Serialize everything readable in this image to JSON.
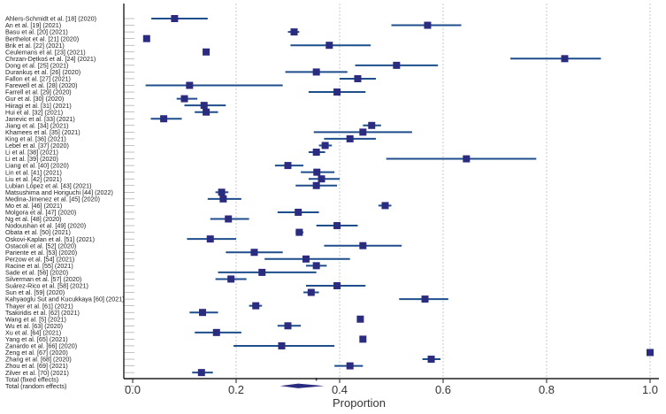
{
  "chart_data": {
    "type": "forest",
    "xlabel": "Proportion",
    "xlim": [
      -0.02,
      1.02
    ],
    "xticks": [
      0.0,
      0.2,
      0.4,
      0.6,
      0.8,
      1.0
    ],
    "xtick_labels": [
      "0.0",
      "0.2",
      "0.4",
      "0.6",
      "0.8",
      "1.0"
    ],
    "grid_x": true,
    "colors": {
      "marker": "#2b2b7f",
      "ci_line": "#1f4e8c",
      "grid": "#bbbbbb",
      "axis": "#222222",
      "summary": "#2b2b7f"
    },
    "studies": [
      {
        "label": "Ahlers-Schmidt et al. [18] (2020)",
        "estimate": 0.081,
        "lower": 0.036,
        "upper": 0.145
      },
      {
        "label": "An et al. [19] (2021)",
        "estimate": 0.57,
        "lower": 0.5,
        "upper": 0.635
      },
      {
        "label": "Basu et al. [20] (2021)",
        "estimate": 0.312,
        "lower": 0.3,
        "upper": 0.322
      },
      {
        "label": "Berthelot et al. [21] (2020)",
        "estimate": 0.027,
        "lower": 0.022,
        "upper": 0.033
      },
      {
        "label": "Brik et al. [22] (2021)",
        "estimate": 0.38,
        "lower": 0.305,
        "upper": 0.46
      },
      {
        "label": "Ceulemans et al. [23] (2021)",
        "estimate": 0.142,
        "lower": 0.136,
        "upper": 0.148
      },
      {
        "label": "Chrzan-Dętkoś et al. [24] (2021)",
        "estimate": 0.835,
        "lower": 0.73,
        "upper": 0.905
      },
      {
        "label": "Dong et al. [25] (2021)",
        "estimate": 0.51,
        "lower": 0.43,
        "upper": 0.59
      },
      {
        "label": "Durankuş et al. [26] (2020)",
        "estimate": 0.355,
        "lower": 0.295,
        "upper": 0.415
      },
      {
        "label": "Fallon et al. [27] (2021)",
        "estimate": 0.435,
        "lower": 0.4,
        "upper": 0.47
      },
      {
        "label": "Farewell et al. [28] (2020)",
        "estimate": 0.11,
        "lower": 0.025,
        "upper": 0.29
      },
      {
        "label": "Farrell et al. [29] (2020)",
        "estimate": 0.395,
        "lower": 0.34,
        "upper": 0.45
      },
      {
        "label": "Gur et al. [30] (2020)",
        "estimate": 0.1,
        "lower": 0.085,
        "upper": 0.125
      },
      {
        "label": "Hiiragi et al. [31] (2021)",
        "estimate": 0.138,
        "lower": 0.1,
        "upper": 0.18
      },
      {
        "label": "Hui et al. [32] (2021)",
        "estimate": 0.142,
        "lower": 0.12,
        "upper": 0.165
      },
      {
        "label": "Janevic et al. [33] (2021)",
        "estimate": 0.06,
        "lower": 0.035,
        "upper": 0.095
      },
      {
        "label": "Jiang et al. [34] (2021)",
        "estimate": 0.462,
        "lower": 0.445,
        "upper": 0.48
      },
      {
        "label": "Khamees et al. [35] (2021)",
        "estimate": 0.445,
        "lower": 0.35,
        "upper": 0.54
      },
      {
        "label": "King et al. [36] (2021)",
        "estimate": 0.42,
        "lower": 0.37,
        "upper": 0.47
      },
      {
        "label": "Lebel et al. [37] (2020)",
        "estimate": 0.372,
        "lower": 0.36,
        "upper": 0.385
      },
      {
        "label": "Li et al. [38] (2021)",
        "estimate": 0.355,
        "lower": 0.34,
        "upper": 0.372
      },
      {
        "label": "Li et al. [39] (2020)",
        "estimate": 0.645,
        "lower": 0.49,
        "upper": 0.78
      },
      {
        "label": "Liang et al. [40] (2020)",
        "estimate": 0.3,
        "lower": 0.275,
        "upper": 0.33
      },
      {
        "label": "Lin et al. [41] (2021)",
        "estimate": 0.356,
        "lower": 0.325,
        "upper": 0.39
      },
      {
        "label": "Liu et al. [42] (2021)",
        "estimate": 0.365,
        "lower": 0.34,
        "upper": 0.4
      },
      {
        "label": "Lubian López et al. [43] (2021)",
        "estimate": 0.355,
        "lower": 0.315,
        "upper": 0.395
      },
      {
        "label": "Matsushima and Horiguchi [44] (2022)",
        "estimate": 0.172,
        "lower": 0.16,
        "upper": 0.185
      },
      {
        "label": "Medina-Jimenez et al. [45] (2020)",
        "estimate": 0.175,
        "lower": 0.145,
        "upper": 0.21
      },
      {
        "label": "Mo et al. [46] (2021)",
        "estimate": 0.488,
        "lower": 0.475,
        "upper": 0.5
      },
      {
        "label": "Molgora et al. [47] (2020)",
        "estimate": 0.32,
        "lower": 0.28,
        "upper": 0.36
      },
      {
        "label": "Ng et al. [48] (2020)",
        "estimate": 0.185,
        "lower": 0.15,
        "upper": 0.225
      },
      {
        "label": "Nodoushan et al. [49] (2020)",
        "estimate": 0.395,
        "lower": 0.355,
        "upper": 0.435
      },
      {
        "label": "Obata et al. [50] (2021)",
        "estimate": 0.322,
        "lower": 0.315,
        "upper": 0.33
      },
      {
        "label": "Oskovi-Kaplan et al. [51] (2021)",
        "estimate": 0.15,
        "lower": 0.105,
        "upper": 0.2
      },
      {
        "label": "Ostacoli et al. [52] (2020)",
        "estimate": 0.445,
        "lower": 0.37,
        "upper": 0.52
      },
      {
        "label": "Pariente et al. [53] (2020)",
        "estimate": 0.235,
        "lower": 0.18,
        "upper": 0.29
      },
      {
        "label": "Perzow et al. [54] (2021)",
        "estimate": 0.335,
        "lower": 0.255,
        "upper": 0.42
      },
      {
        "label": "Racine et al. [55] (2021)",
        "estimate": 0.355,
        "lower": 0.335,
        "upper": 0.375
      },
      {
        "label": "Sade et al. [56] (2020)",
        "estimate": 0.25,
        "lower": 0.165,
        "upper": 0.355
      },
      {
        "label": "Silverman et al. [57] (2020)",
        "estimate": 0.19,
        "lower": 0.16,
        "upper": 0.22
      },
      {
        "label": "Suárez-Rico et al. [58] (2021)",
        "estimate": 0.395,
        "lower": 0.335,
        "upper": 0.45
      },
      {
        "label": "Sun et al. [59] (2020)",
        "estimate": 0.345,
        "lower": 0.33,
        "upper": 0.36
      },
      {
        "label": "Kahyaoglu Sut and Kucukkaya [60] (2021)",
        "estimate": 0.565,
        "lower": 0.515,
        "upper": 0.61
      },
      {
        "label": "Thayer et al. [61] (2021)",
        "estimate": 0.238,
        "lower": 0.225,
        "upper": 0.25
      },
      {
        "label": "Tsakiridis et al. [62] (2021)",
        "estimate": 0.135,
        "lower": 0.11,
        "upper": 0.165
      },
      {
        "label": "Wang et al. [5] (2021)",
        "estimate": 0.44,
        "lower": 0.435,
        "upper": 0.445
      },
      {
        "label": "Wu et al. [63] (2020)",
        "estimate": 0.3,
        "lower": 0.28,
        "upper": 0.325
      },
      {
        "label": "Xu et al. [64] (2021)",
        "estimate": 0.162,
        "lower": 0.12,
        "upper": 0.21
      },
      {
        "label": "Yang et al. [65] (2021)",
        "estimate": 0.445,
        "lower": 0.44,
        "upper": 0.45
      },
      {
        "label": "Zanardo et al. [66] (2020)",
        "estimate": 0.288,
        "lower": 0.195,
        "upper": 0.39
      },
      {
        "label": "Zeng et al. [67] (2020)",
        "estimate": 1.0,
        "lower": 0.995,
        "upper": 1.0
      },
      {
        "label": "Zhang et al. [68] (2020)",
        "estimate": 0.577,
        "lower": 0.56,
        "upper": 0.595
      },
      {
        "label": "Zhou et al. [69] (2021)",
        "estimate": 0.42,
        "lower": 0.39,
        "upper": 0.445
      },
      {
        "label": "Zilver et al. [70] (2021)",
        "estimate": 0.133,
        "lower": 0.115,
        "upper": 0.155
      }
    ],
    "pooled": [
      {
        "label": "Total (fixed effects)",
        "estimate": 0.355,
        "lower": 0.353,
        "upper": 0.357
      },
      {
        "label": "Total (random effects)",
        "estimate": 0.32,
        "lower": 0.285,
        "upper": 0.37
      }
    ]
  }
}
